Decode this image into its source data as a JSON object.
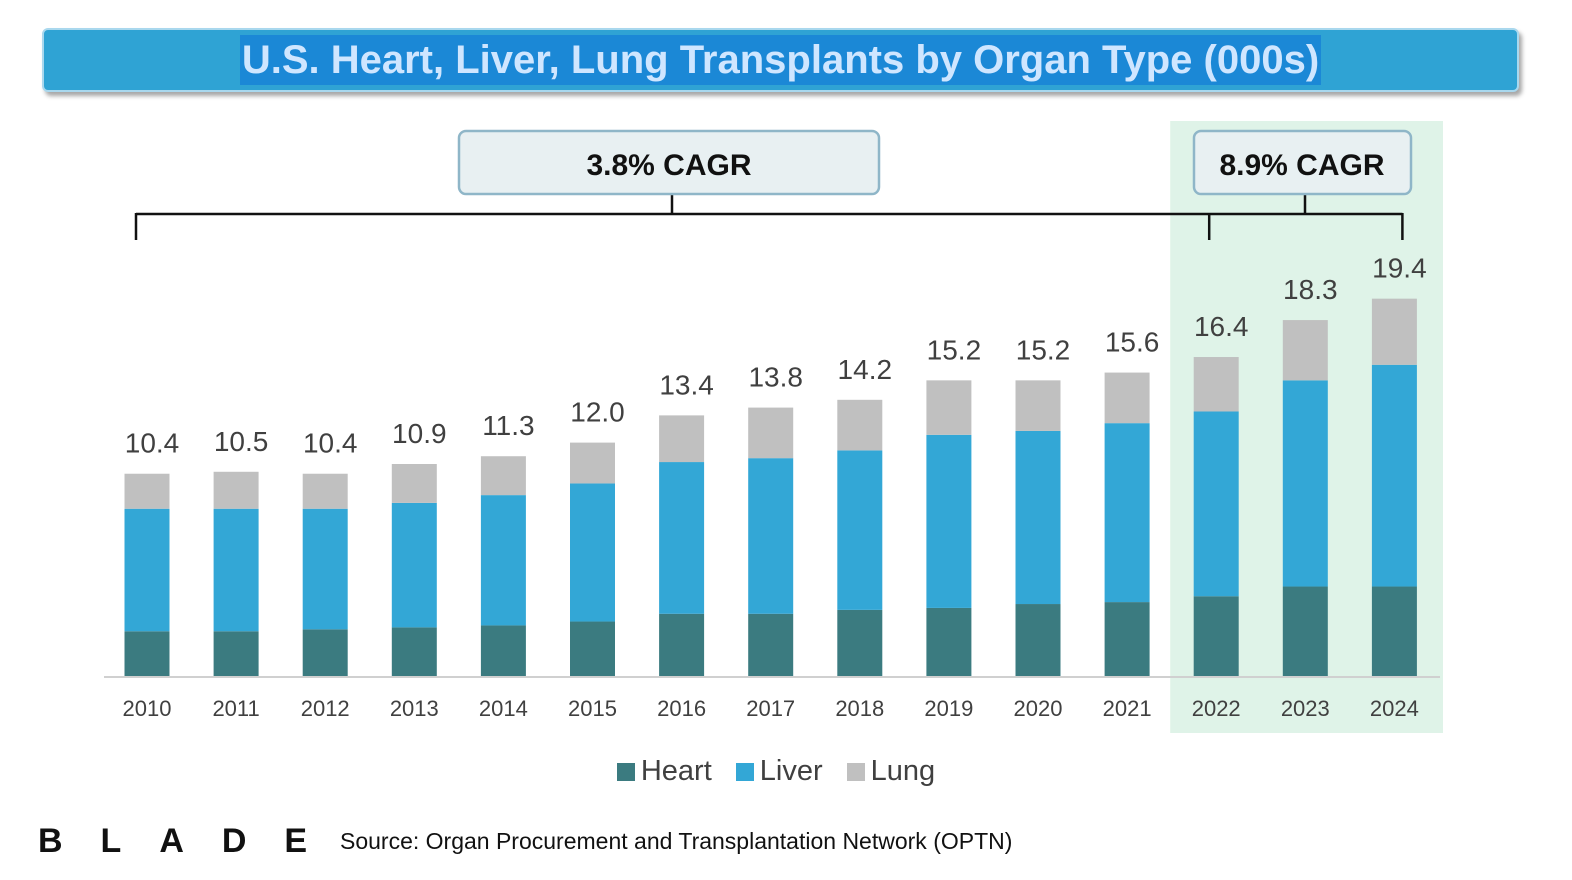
{
  "title": "U.S. Heart, Liver, Lung Transplants by Organ Type (000s)",
  "chart_data": {
    "type": "bar",
    "stacked": true,
    "title": "U.S. Heart, Liver, Lung Transplants by Organ Type (000s)",
    "categories": [
      "2010",
      "2011",
      "2012",
      "2013",
      "2014",
      "2015",
      "2016",
      "2017",
      "2018",
      "2019",
      "2020",
      "2021",
      "2022",
      "2023",
      "2024"
    ],
    "series": [
      {
        "name": "Heart",
        "color": "#3b7b80",
        "values": [
          2.3,
          2.3,
          2.4,
          2.5,
          2.6,
          2.8,
          3.2,
          3.2,
          3.4,
          3.5,
          3.7,
          3.8,
          4.1,
          4.6,
          4.6
        ]
      },
      {
        "name": "Liver",
        "color": "#33a7d6",
        "values": [
          6.3,
          6.3,
          6.2,
          6.4,
          6.7,
          7.1,
          7.8,
          8.0,
          8.2,
          8.9,
          8.9,
          9.2,
          9.5,
          10.6,
          11.4
        ]
      },
      {
        "name": "Lung",
        "color": "#c0c0c0",
        "values": [
          1.8,
          1.9,
          1.8,
          2.0,
          2.0,
          2.1,
          2.4,
          2.6,
          2.6,
          2.8,
          2.6,
          2.6,
          2.8,
          3.1,
          3.4
        ]
      }
    ],
    "totals": [
      "10.4",
      "10.5",
      "10.4",
      "10.9",
      "11.3",
      "12.0",
      "13.4",
      "13.8",
      "14.2",
      "15.2",
      "15.2",
      "15.6",
      "16.4",
      "18.3",
      "19.4"
    ],
    "ylim": [
      0,
      21
    ],
    "grid": false,
    "legend": "bottom",
    "annotations": [
      {
        "text": "3.8% CAGR",
        "from": "2010",
        "to": "2022"
      },
      {
        "text": "8.9% CAGR",
        "from": "2022",
        "to": "2024",
        "highlight_color": "#dff3e8"
      }
    ]
  },
  "legend": [
    "Heart",
    "Liver",
    "Lung"
  ],
  "footer": {
    "logo": "BLADE",
    "source": "Source: Organ Procurement and Transplantation Network (OPTN)"
  }
}
